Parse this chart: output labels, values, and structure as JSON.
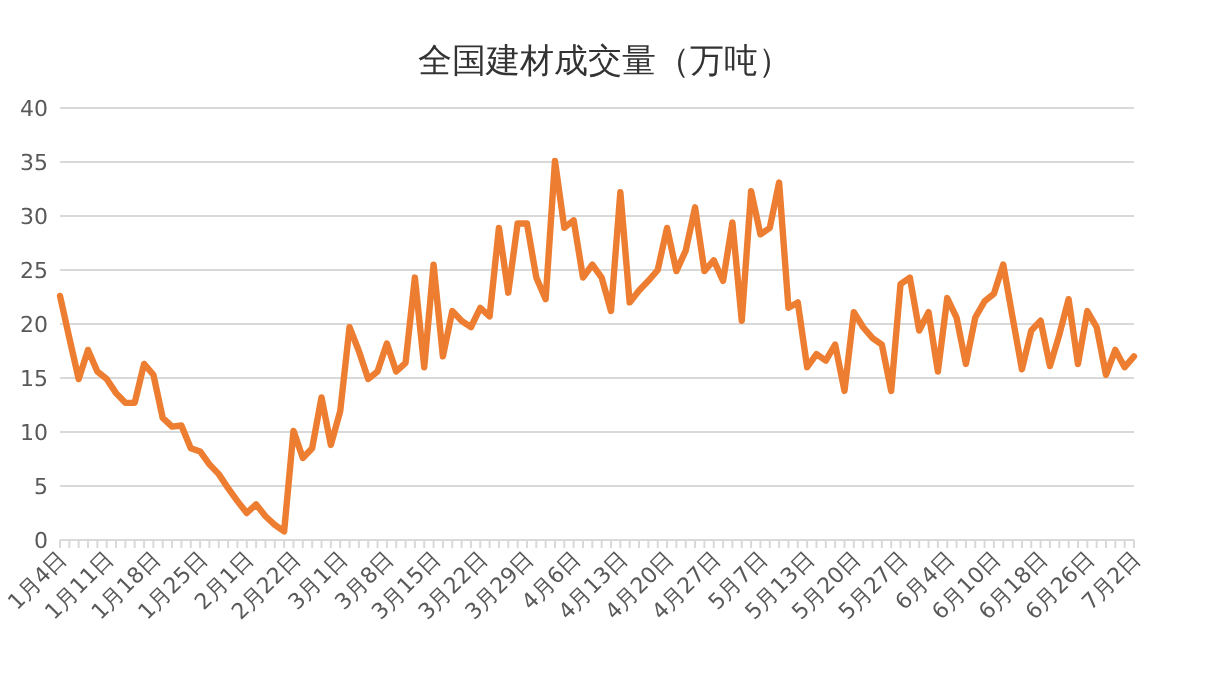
{
  "chart_data": {
    "type": "line",
    "title": "全国建材成交量（万吨）",
    "categories": [
      "1月4日",
      null,
      null,
      null,
      null,
      "1月11日",
      null,
      null,
      null,
      null,
      "1月18日",
      null,
      null,
      null,
      null,
      "1月25日",
      null,
      null,
      null,
      null,
      "2月1日",
      null,
      null,
      null,
      null,
      "2月22日",
      null,
      null,
      null,
      null,
      "3月1日",
      null,
      null,
      null,
      null,
      "3月8日",
      null,
      null,
      null,
      null,
      "3月15日",
      null,
      null,
      null,
      null,
      "3月22日",
      null,
      null,
      null,
      null,
      "3月29日",
      null,
      null,
      null,
      null,
      "4月6日",
      null,
      null,
      null,
      null,
      "4月13日",
      null,
      null,
      null,
      null,
      "4月20日",
      null,
      null,
      null,
      null,
      "4月27日",
      null,
      null,
      null,
      null,
      "5月7日",
      null,
      null,
      null,
      null,
      "5月13日",
      null,
      null,
      null,
      null,
      "5月20日",
      null,
      null,
      null,
      null,
      "5月27日",
      null,
      null,
      null,
      null,
      "6月4日",
      null,
      null,
      null,
      null,
      "6月10日",
      null,
      null,
      null,
      null,
      "6月18日",
      null,
      null,
      null,
      null,
      "6月26日",
      null,
      null,
      null,
      null,
      "7月2日"
    ],
    "series": [
      {
        "color": "#ed7d31",
        "values": [
          22.6,
          18.7,
          14.9,
          17.6,
          15.6,
          14.9,
          13.6,
          12.7,
          12.7,
          16.3,
          15.3,
          11.3,
          10.5,
          10.6,
          8.5,
          8.2,
          7.0,
          6.1,
          4.8,
          3.6,
          2.5,
          3.3,
          2.2,
          1.4,
          0.8,
          10.1,
          7.6,
          8.5,
          13.2,
          8.8,
          11.9,
          19.7,
          17.5,
          14.9,
          15.6,
          18.2,
          15.6,
          16.4,
          24.3,
          16.0,
          25.5,
          17.0,
          21.2,
          20.3,
          19.7,
          21.5,
          20.7,
          28.9,
          22.9,
          29.3,
          29.3,
          24.3,
          22.3,
          35.1,
          28.9,
          29.6,
          24.3,
          25.5,
          24.3,
          21.2,
          32.2,
          22.0,
          23.1,
          24.0,
          25.0,
          28.9,
          24.9,
          26.8,
          30.8,
          24.9,
          25.9,
          24.0,
          29.4,
          20.3,
          32.3,
          28.3,
          28.9,
          33.1,
          21.5,
          22.0,
          16.0,
          17.2,
          16.6,
          18.1,
          13.8,
          21.1,
          19.7,
          18.7,
          18.1,
          13.8,
          23.7,
          24.3,
          19.4,
          21.1,
          15.6,
          22.4,
          20.6,
          16.3,
          20.6,
          22.1,
          22.8,
          25.5,
          20.6,
          15.8,
          19.4,
          20.3,
          16.1,
          19.0,
          22.3,
          16.3,
          21.2,
          19.7,
          15.3,
          17.6,
          16.0,
          17.0
        ]
      }
    ],
    "ylim": [
      0,
      40
    ],
    "yticks": [
      0,
      5,
      10,
      15,
      20,
      25,
      30,
      35,
      40
    ],
    "grid": "y",
    "marker": "none",
    "line_style": "solid"
  }
}
